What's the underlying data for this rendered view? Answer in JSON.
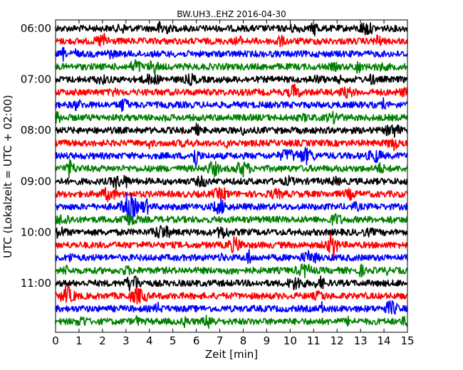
{
  "chart_data": {
    "type": "line",
    "title": "BW.UH3..EHZ 2016-04-30",
    "xlabel": "Zeit  [min]",
    "ylabel": "UTC (Lokalzeit = UTC + 02:00)",
    "xlim": [
      0,
      15
    ],
    "x_ticks": [
      0,
      1,
      2,
      3,
      4,
      5,
      6,
      7,
      8,
      9,
      10,
      11,
      12,
      13,
      14,
      15
    ],
    "x_tick_labels": [
      "0",
      "1",
      "2",
      "3",
      "4",
      "5",
      "6",
      "7",
      "8",
      "9",
      "10",
      "11",
      "12",
      "13",
      "14",
      "15"
    ],
    "y_tick_labels": [
      "06:00",
      "07:00",
      "08:00",
      "09:00",
      "10:00",
      "11:00"
    ],
    "trace_interval_min": 15,
    "trace_count": 24,
    "first_trace_label": "06:00",
    "trace_color_cycle": [
      "#000000",
      "#ff0000",
      "#0000ff",
      "#008000"
    ],
    "grid": false,
    "legend": "none"
  }
}
